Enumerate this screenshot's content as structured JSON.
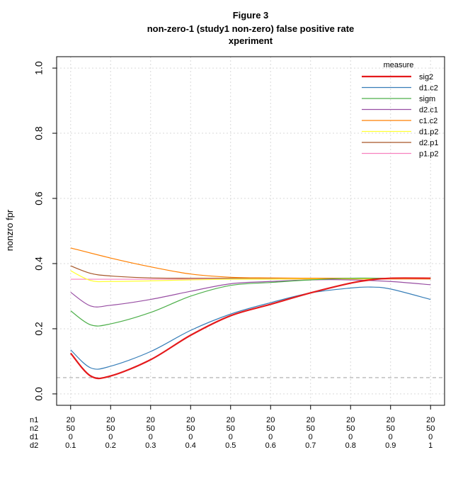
{
  "chart_data": {
    "type": "line",
    "title_lines": [
      "Figure 3",
      "non-zero-1 (study1 non-zero) false positive rate",
      "xperiment"
    ],
    "ylabel": "nonzro fpr",
    "ylim": [
      0,
      1
    ],
    "yticks": [
      0.0,
      0.2,
      0.4,
      0.6,
      0.8,
      1.0
    ],
    "ytick_labels": [
      "0.0",
      "0.2",
      "0.4",
      "0.6",
      "0.8",
      "1.0"
    ],
    "grid": true,
    "reference_line": {
      "y": 0.05,
      "style": "dashed",
      "color": "#aaaaaa"
    },
    "x_index": [
      1,
      2,
      3,
      4,
      5,
      6,
      7,
      8,
      9,
      10
    ],
    "x_table": {
      "row_labels": [
        "n1",
        "n2",
        "d1",
        "d2"
      ],
      "rows": [
        [
          "20",
          "20",
          "20",
          "20",
          "20",
          "20",
          "20",
          "20",
          "20",
          "20"
        ],
        [
          "50",
          "50",
          "50",
          "50",
          "50",
          "50",
          "50",
          "50",
          "50",
          "50"
        ],
        [
          "0",
          "0",
          "0",
          "0",
          "0",
          "0",
          "0",
          "0",
          "0",
          "0"
        ],
        [
          "0.1",
          "0.2",
          "0.3",
          "0.4",
          "0.5",
          "0.6",
          "0.7",
          "0.8",
          "0.9",
          "1"
        ]
      ]
    },
    "legend": {
      "title": "measure",
      "position": "top-right"
    },
    "series": [
      {
        "name": "sig2",
        "color": "#e41a1c",
        "width": 2.2,
        "x": [
          1,
          1.5,
          2,
          3,
          4,
          5,
          6,
          7,
          8,
          8.5,
          9,
          10
        ],
        "values": [
          0.125,
          0.055,
          0.055,
          0.105,
          0.18,
          0.24,
          0.275,
          0.31,
          0.34,
          0.35,
          0.355,
          0.355
        ]
      },
      {
        "name": "d1.c2",
        "color": "#377eb8",
        "width": 1.2,
        "x": [
          1,
          1.5,
          2,
          3,
          4,
          5,
          6,
          7,
          8,
          8.5,
          9,
          10
        ],
        "values": [
          0.135,
          0.08,
          0.085,
          0.13,
          0.195,
          0.245,
          0.28,
          0.31,
          0.325,
          0.328,
          0.322,
          0.29
        ]
      },
      {
        "name": "sigm",
        "color": "#4daf4a",
        "width": 1.2,
        "x": [
          1,
          1.5,
          2,
          3,
          4,
          5,
          6,
          7,
          8,
          9,
          10
        ],
        "values": [
          0.255,
          0.212,
          0.215,
          0.25,
          0.3,
          0.333,
          0.342,
          0.35,
          0.355,
          0.355,
          0.355
        ]
      },
      {
        "name": "d2.c1",
        "color": "#984ea3",
        "width": 1.2,
        "x": [
          1,
          1.5,
          2,
          3,
          4,
          5,
          6,
          7,
          8,
          9,
          10
        ],
        "values": [
          0.312,
          0.27,
          0.272,
          0.29,
          0.315,
          0.338,
          0.345,
          0.35,
          0.35,
          0.345,
          0.335
        ]
      },
      {
        "name": "c1.c2",
        "color": "#ff7f00",
        "width": 1.2,
        "x": [
          1,
          2,
          3,
          4,
          5,
          6,
          7,
          8,
          9,
          10
        ],
        "values": [
          0.448,
          0.417,
          0.39,
          0.368,
          0.358,
          0.356,
          0.355,
          0.355,
          0.355,
          0.355
        ]
      },
      {
        "name": "d1.p2",
        "color": "#ffff33",
        "width": 1.2,
        "x": [
          1,
          1.5,
          2,
          3,
          4,
          5,
          6,
          7,
          8,
          9,
          10
        ],
        "values": [
          0.378,
          0.348,
          0.345,
          0.347,
          0.35,
          0.352,
          0.352,
          0.353,
          0.353,
          0.353,
          0.353
        ]
      },
      {
        "name": "d2.p1",
        "color": "#a65628",
        "width": 1.2,
        "x": [
          1,
          1.5,
          2,
          3,
          4,
          5,
          6,
          7,
          8,
          9,
          10
        ],
        "values": [
          0.393,
          0.37,
          0.362,
          0.356,
          0.355,
          0.355,
          0.355,
          0.355,
          0.355,
          0.355,
          0.353
        ]
      },
      {
        "name": "p1.p2",
        "color": "#f781bf",
        "width": 1.2,
        "x": [
          1,
          2,
          3,
          4,
          5,
          6,
          7,
          8,
          9,
          10
        ],
        "values": [
          0.352,
          0.352,
          0.352,
          0.352,
          0.352,
          0.352,
          0.352,
          0.352,
          0.352,
          0.352
        ]
      }
    ]
  }
}
